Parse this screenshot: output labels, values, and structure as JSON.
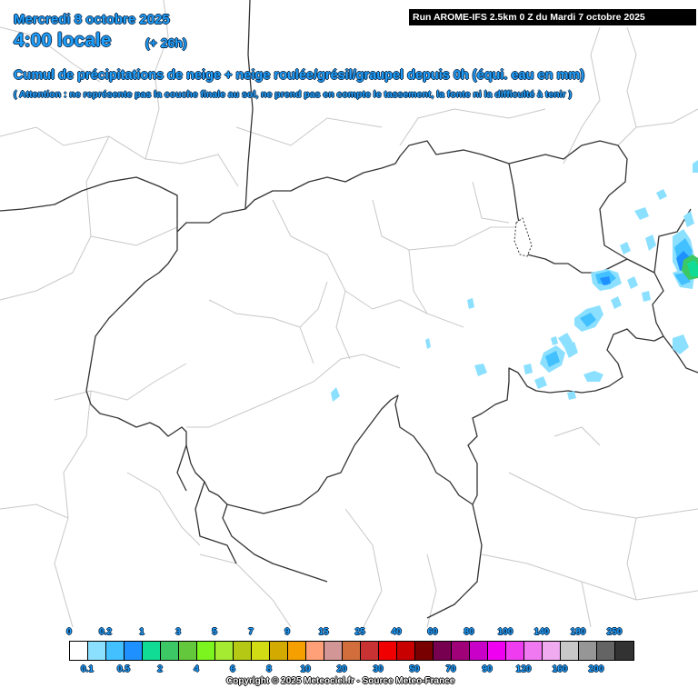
{
  "header": {
    "date": "Mercredi 8 octobre 2025",
    "time": "4:00 locale",
    "lead": "(+ 26h)",
    "run": "Run AROME-IFS 2.5km 0 Z du Mardi 7 octobre 2025"
  },
  "title": "Cumul de précipitations de neige + neige roulée/grésil/graupel depuis 0h (équi. eau en mm)",
  "note": "( Attention : ne représente pas la couche finale au sol, ne prend pas en compte le tassement, la fonte ni la difficulté à tenir )",
  "legend": {
    "top_labels": [
      "0",
      "0.2",
      "1",
      "3",
      "5",
      "7",
      "9",
      "15",
      "25",
      "40",
      "60",
      "80",
      "100",
      "140",
      "180",
      "250"
    ],
    "bottom_labels": [
      "0.1",
      "0.5",
      "2",
      "4",
      "6",
      "8",
      "10",
      "20",
      "30",
      "50",
      "70",
      "90",
      "120",
      "160",
      "200"
    ],
    "colors": [
      "#ffffff",
      "#8ce0ff",
      "#42c0ff",
      "#1e90ff",
      "#10dc96",
      "#3cc864",
      "#64c83c",
      "#7cf51e",
      "#a5eb32",
      "#b4c814",
      "#d2dc14",
      "#d2aa00",
      "#f5a000",
      "#ffa078",
      "#d29696",
      "#d26e3c",
      "#c83232",
      "#f00000",
      "#c80000",
      "#780000",
      "#780050",
      "#a00078",
      "#c800c8",
      "#f000f0",
      "#f03cf0",
      "#f078f0",
      "#f0aaf0",
      "#c8c8c8",
      "#969696",
      "#646464",
      "#323232"
    ]
  },
  "copyright": "Copyright © 2025 Meteociel.fr - Source Meteo-France"
}
